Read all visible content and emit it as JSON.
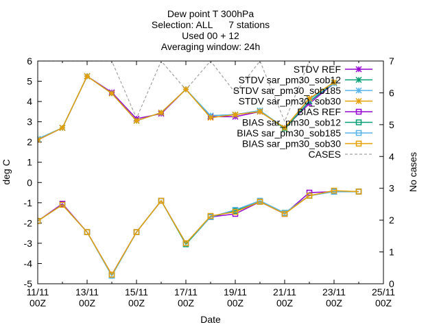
{
  "chart_data": {
    "type": "line",
    "title_lines": [
      "Dew point T 300hPa",
      "Selection: ALL      7 stations",
      "Used 00 + 12",
      "Averaging window: 24h"
    ],
    "xlabel": "Date",
    "ylabel": "deg C",
    "y2label": "No cases",
    "ylim": [
      -5,
      6
    ],
    "y2lim": [
      0,
      7
    ],
    "xlim": [
      "2023-11-11",
      "2023-11-25"
    ],
    "x_ticks": [
      {
        "date": "2023-11-11",
        "label": [
          "11/11",
          "00Z"
        ]
      },
      {
        "date": "2023-11-13",
        "label": [
          "13/11",
          "00Z"
        ]
      },
      {
        "date": "2023-11-15",
        "label": [
          "15/11",
          "00Z"
        ]
      },
      {
        "date": "2023-11-17",
        "label": [
          "17/11",
          "00Z"
        ]
      },
      {
        "date": "2023-11-19",
        "label": [
          "19/11",
          "00Z"
        ]
      },
      {
        "date": "2023-11-21",
        "label": [
          "21/11",
          "00Z"
        ]
      },
      {
        "date": "2023-11-23",
        "label": [
          "23/11",
          "00Z"
        ]
      },
      {
        "date": "2023-11-25",
        "label": [
          "25/11",
          "00Z"
        ]
      }
    ],
    "y_ticks": [
      -5,
      -4,
      -3,
      -2,
      -1,
      0,
      1,
      2,
      3,
      4,
      5,
      6
    ],
    "y2_ticks": [
      0,
      1,
      2,
      3,
      4,
      5,
      6,
      7
    ],
    "x": [
      "2023-11-11",
      "2023-11-12",
      "2023-11-13",
      "2023-11-14",
      "2023-11-15",
      "2023-11-16",
      "2023-11-17",
      "2023-11-18",
      "2023-11-19",
      "2023-11-20",
      "2023-11-21",
      "2023-11-22",
      "2023-11-23",
      "2023-11-24"
    ],
    "legend_position": "top-right",
    "series": [
      {
        "name": "STDV REF",
        "color": "#9400d3",
        "marker": "star",
        "axis": "y",
        "dash": false,
        "values": [
          2.1,
          2.7,
          5.25,
          4.45,
          3.15,
          3.4,
          4.6,
          3.25,
          3.25,
          3.5,
          2.7,
          3.9,
          4.9,
          null
        ]
      },
      {
        "name": "STDV sar_pm30_sob12",
        "color": "#009e73",
        "marker": "star",
        "axis": "y",
        "dash": false,
        "values": [
          2.15,
          2.7,
          5.25,
          4.4,
          3.05,
          3.45,
          4.6,
          3.3,
          3.35,
          3.55,
          2.65,
          4.0,
          4.9,
          null
        ]
      },
      {
        "name": "STDV sar_pm30_sob185",
        "color": "#56b4e9",
        "marker": "star",
        "axis": "y",
        "dash": false,
        "values": [
          2.15,
          2.7,
          5.25,
          4.4,
          3.05,
          3.45,
          4.6,
          3.3,
          3.35,
          3.55,
          2.7,
          4.1,
          4.9,
          null
        ]
      },
      {
        "name": "STDV sar_pm30_sob30",
        "color": "#e69f00",
        "marker": "star",
        "axis": "y",
        "dash": false,
        "values": [
          2.1,
          2.7,
          5.25,
          4.4,
          3.05,
          3.45,
          4.6,
          3.2,
          3.35,
          3.5,
          2.7,
          4.15,
          4.95,
          null
        ]
      },
      {
        "name": "BIAS REF",
        "color": "#9400d3",
        "marker": "square",
        "axis": "y",
        "dash": false,
        "values": [
          -1.9,
          -1.05,
          -2.45,
          -4.55,
          -2.45,
          -0.9,
          -3.0,
          -1.7,
          -1.55,
          -0.95,
          -1.55,
          -0.5,
          -0.45,
          -0.45
        ]
      },
      {
        "name": "BIAS sar_pm30_sob12",
        "color": "#009e73",
        "marker": "square",
        "axis": "y",
        "dash": false,
        "values": [
          -1.9,
          -1.1,
          -2.45,
          -4.6,
          -2.45,
          -0.9,
          -3.05,
          -1.7,
          -1.4,
          -0.95,
          -1.5,
          -0.65,
          -0.45,
          -0.45
        ]
      },
      {
        "name": "BIAS sar_pm30_sob185",
        "color": "#56b4e9",
        "marker": "square",
        "axis": "y",
        "dash": false,
        "values": [
          -1.9,
          -1.1,
          -2.45,
          -4.6,
          -2.45,
          -0.9,
          -3.0,
          -1.7,
          -1.35,
          -0.9,
          -1.5,
          -0.65,
          -0.45,
          -0.45
        ]
      },
      {
        "name": "BIAS sar_pm30_sob30",
        "color": "#e69f00",
        "marker": "square",
        "axis": "y",
        "dash": false,
        "values": [
          -1.9,
          -1.1,
          -2.45,
          -4.55,
          -2.45,
          -0.9,
          -3.0,
          -1.65,
          -1.45,
          -0.95,
          -1.55,
          -0.65,
          -0.4,
          -0.45
        ]
      },
      {
        "name": "CASES",
        "color": "#a0a0a0",
        "marker": "none",
        "axis": "y2",
        "dash": true,
        "values": [
          7,
          7,
          7,
          7,
          5.2,
          7,
          6.1,
          7,
          6,
          7,
          5.1,
          7,
          7,
          null
        ]
      }
    ]
  }
}
